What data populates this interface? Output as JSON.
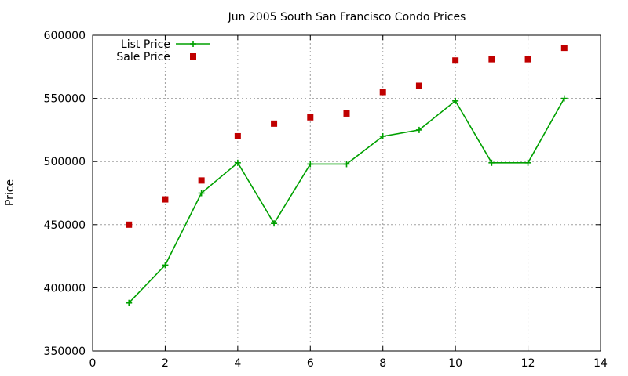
{
  "chart_data": {
    "type": "line",
    "title": "Jun 2005 South San Francisco Condo Prices",
    "xlabel": "",
    "ylabel": "Price",
    "xlim": [
      0,
      14
    ],
    "ylim": [
      350000,
      600000
    ],
    "xticks": [
      0,
      2,
      4,
      6,
      8,
      10,
      12,
      14
    ],
    "yticks": [
      350000,
      400000,
      450000,
      500000,
      550000,
      600000
    ],
    "grid": true,
    "legend_position": "top-left",
    "series": [
      {
        "name": "List Price",
        "style": "line+plus-markers",
        "color": "#00a000",
        "x": [
          1,
          2,
          3,
          4,
          5,
          6,
          7,
          8,
          9,
          10,
          11,
          12,
          13
        ],
        "y": [
          388000,
          418000,
          475000,
          499000,
          451000,
          498000,
          498000,
          520000,
          525000,
          548000,
          499000,
          499000,
          550000
        ]
      },
      {
        "name": "Sale Price",
        "style": "square-markers",
        "color": "#c00000",
        "x": [
          1,
          2,
          3,
          4,
          5,
          6,
          7,
          8,
          9,
          10,
          11,
          12,
          13
        ],
        "y": [
          450000,
          470000,
          485000,
          520000,
          530000,
          535000,
          538000,
          555000,
          560000,
          580000,
          581000,
          581000,
          590000
        ]
      }
    ]
  }
}
